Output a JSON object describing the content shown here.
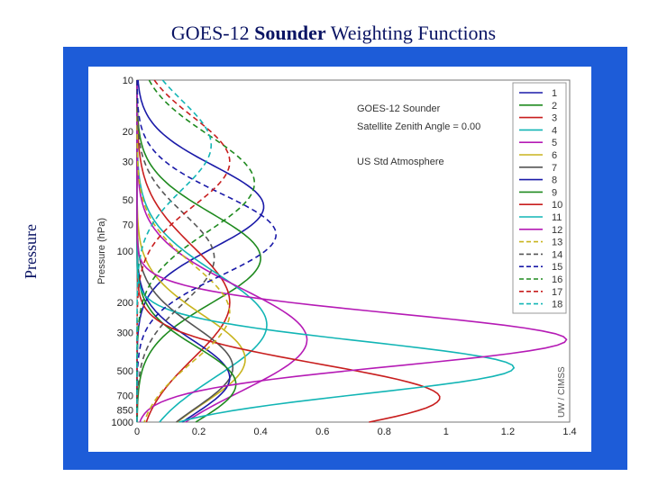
{
  "slide": {
    "title_prefix": "GOES-12 ",
    "title_bold": "Sounder",
    "title_suffix": " Weighting Functions",
    "side_label": "Pressure",
    "background_panel_color": "#1d5cd8"
  },
  "chart_data": {
    "type": "line",
    "title": "",
    "xlabel": "",
    "ylabel": "Pressure (hPa)",
    "xlim": [
      0,
      1.4
    ],
    "ylim": [
      1000,
      10
    ],
    "y_scale": "log",
    "x_ticks": [
      "0",
      "0.2",
      "0.4",
      "0.6",
      "0.8",
      "1",
      "1.2",
      "1.4"
    ],
    "y_ticks": [
      {
        "value": 10,
        "label": "10"
      },
      {
        "value": 20,
        "label": "20"
      },
      {
        "value": 30,
        "label": "30"
      },
      {
        "value": 50,
        "label": "50"
      },
      {
        "value": 70,
        "label": "70"
      },
      {
        "value": 100,
        "label": "100"
      },
      {
        "value": 200,
        "label": "200"
      },
      {
        "value": 300,
        "label": "300"
      },
      {
        "value": 500,
        "label": "500"
      },
      {
        "value": 700,
        "label": "700"
      },
      {
        "value": 850,
        "label": "850"
      },
      {
        "value": 1000,
        "label": "1000"
      }
    ],
    "annotations": [
      "GOES-12 Sounder",
      "Satellite Zenith Angle = 0.00",
      "US Std Atmosphere"
    ],
    "credit": "UW / CIMSS",
    "legend_position": "top-right",
    "grid": false,
    "series": [
      {
        "name": "1",
        "color": "#1a1aa8",
        "dash": "solid",
        "peak_x": 0.41,
        "peak_p": 55,
        "width": 0.55
      },
      {
        "name": "2",
        "color": "#1f8a1f",
        "dash": "solid",
        "peak_x": 0.4,
        "peak_p": 110,
        "width": 0.6
      },
      {
        "name": "3",
        "color": "#c81e1e",
        "dash": "solid",
        "peak_x": 0.3,
        "peak_p": 200,
        "width": 0.75
      },
      {
        "name": "4",
        "color": "#12b5b5",
        "dash": "solid",
        "peak_x": 0.42,
        "peak_p": 270,
        "width": 0.7
      },
      {
        "name": "5",
        "color": "#b51ab5",
        "dash": "solid",
        "peak_x": 0.55,
        "peak_p": 330,
        "width": 0.7
      },
      {
        "name": "6",
        "color": "#c8b41e",
        "dash": "solid",
        "peak_x": 0.35,
        "peak_p": 430,
        "width": 0.6
      },
      {
        "name": "7",
        "color": "#555555",
        "dash": "solid",
        "peak_x": 0.31,
        "peak_p": 480,
        "width": 0.55
      },
      {
        "name": "8",
        "color": "#1a1aa8",
        "dash": "solid",
        "peak_x": 0.3,
        "peak_p": 550,
        "width": 0.5
      },
      {
        "name": "9",
        "color": "#1f8a1f",
        "dash": "solid",
        "peak_x": 0.32,
        "peak_p": 600,
        "width": 0.5
      },
      {
        "name": "10",
        "color": "#c81e1e",
        "dash": "solid",
        "peak_x": 0.98,
        "peak_p": 720,
        "width": 0.45
      },
      {
        "name": "11",
        "color": "#12b5b5",
        "dash": "solid",
        "peak_x": 1.22,
        "peak_p": 480,
        "width": 0.35
      },
      {
        "name": "12",
        "color": "#b51ab5",
        "dash": "solid",
        "peak_x": 1.39,
        "peak_p": 330,
        "width": 0.35
      },
      {
        "name": "13",
        "color": "#c8b41e",
        "dash": "dashed",
        "peak_x": 0.3,
        "peak_p": 230,
        "width": 0.65
      },
      {
        "name": "14",
        "color": "#555555",
        "dash": "dashed",
        "peak_x": 0.25,
        "peak_p": 110,
        "width": 0.6
      },
      {
        "name": "15",
        "color": "#1a1aa8",
        "dash": "dashed",
        "peak_x": 0.45,
        "peak_p": 80,
        "width": 0.55
      },
      {
        "name": "16",
        "color": "#1f8a1f",
        "dash": "dashed",
        "peak_x": 0.38,
        "peak_p": 40,
        "width": 0.65
      },
      {
        "name": "17",
        "color": "#c81e1e",
        "dash": "dashed",
        "peak_x": 0.3,
        "peak_p": 30,
        "width": 0.6
      },
      {
        "name": "18",
        "color": "#12b5b5",
        "dash": "dashed",
        "peak_x": 0.24,
        "peak_p": 24,
        "width": 0.6
      }
    ]
  }
}
